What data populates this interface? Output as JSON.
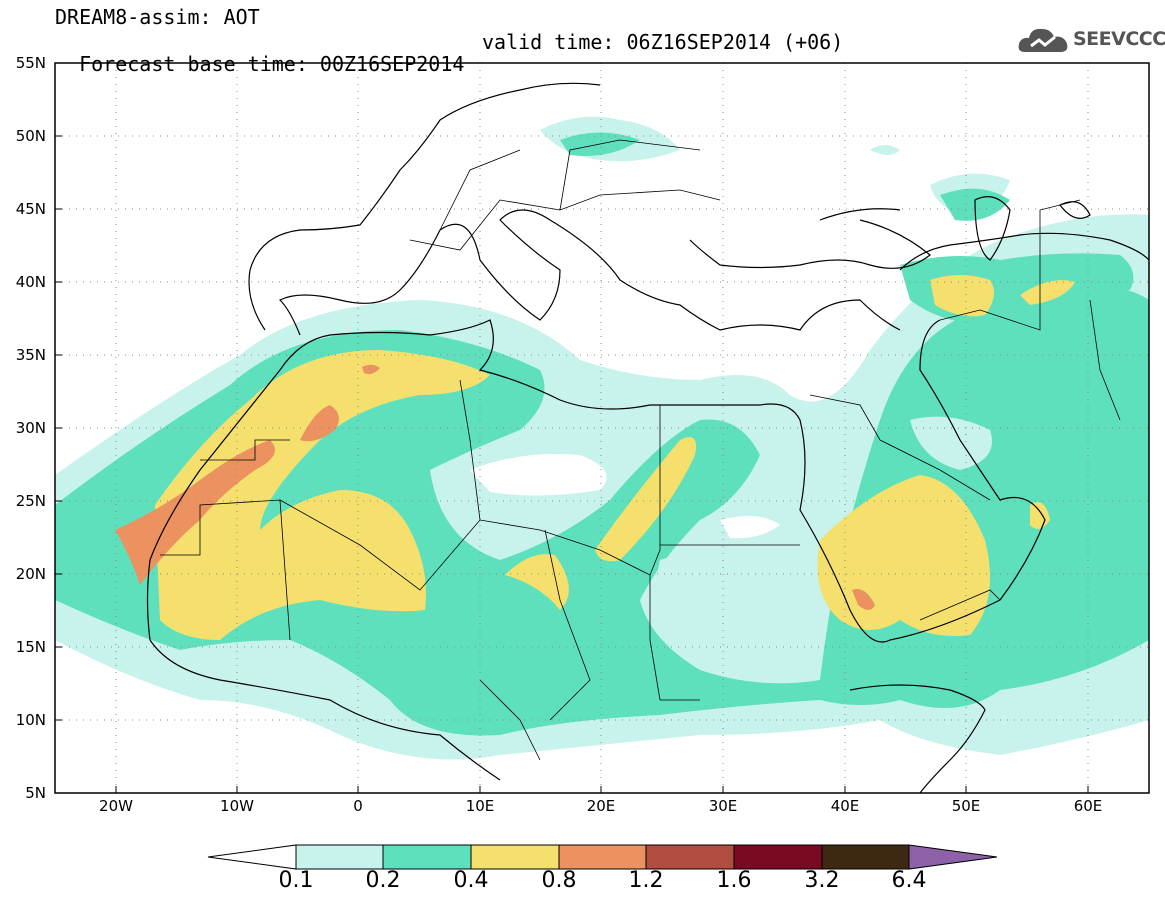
{
  "title": {
    "line1": "DREAM8-assim: AOT",
    "line2": "Forecast base time: 00Z16SEP2014",
    "valid": "valid time: 06Z16SEP2014 (+06)"
  },
  "logo": {
    "text": "SEEVCCC",
    "icon": "cloud-icon",
    "color": "#555555"
  },
  "map": {
    "lon_range": [
      -25,
      65
    ],
    "lat_range": [
      5,
      55
    ],
    "x_ticks": [
      "20W",
      "10W",
      "0",
      "10E",
      "20E",
      "30E",
      "40E",
      "50E",
      "60E"
    ],
    "y_ticks": [
      "55N",
      "50N",
      "45N",
      "40N",
      "35N",
      "30N",
      "25N",
      "20N",
      "15N",
      "10N",
      "5N"
    ],
    "grid": "dotted"
  },
  "colorbar": {
    "labels": [
      "0.1",
      "0.2",
      "0.4",
      "0.8",
      "1.2",
      "1.6",
      "3.2",
      "6.4"
    ],
    "colors": [
      "#ffffff",
      "#c8f2ec",
      "#5fe0bc",
      "#f5e06e",
      "#eb9260",
      "#b04d3e",
      "#790a22",
      "#3e2812",
      "#8e62a8"
    ]
  }
}
